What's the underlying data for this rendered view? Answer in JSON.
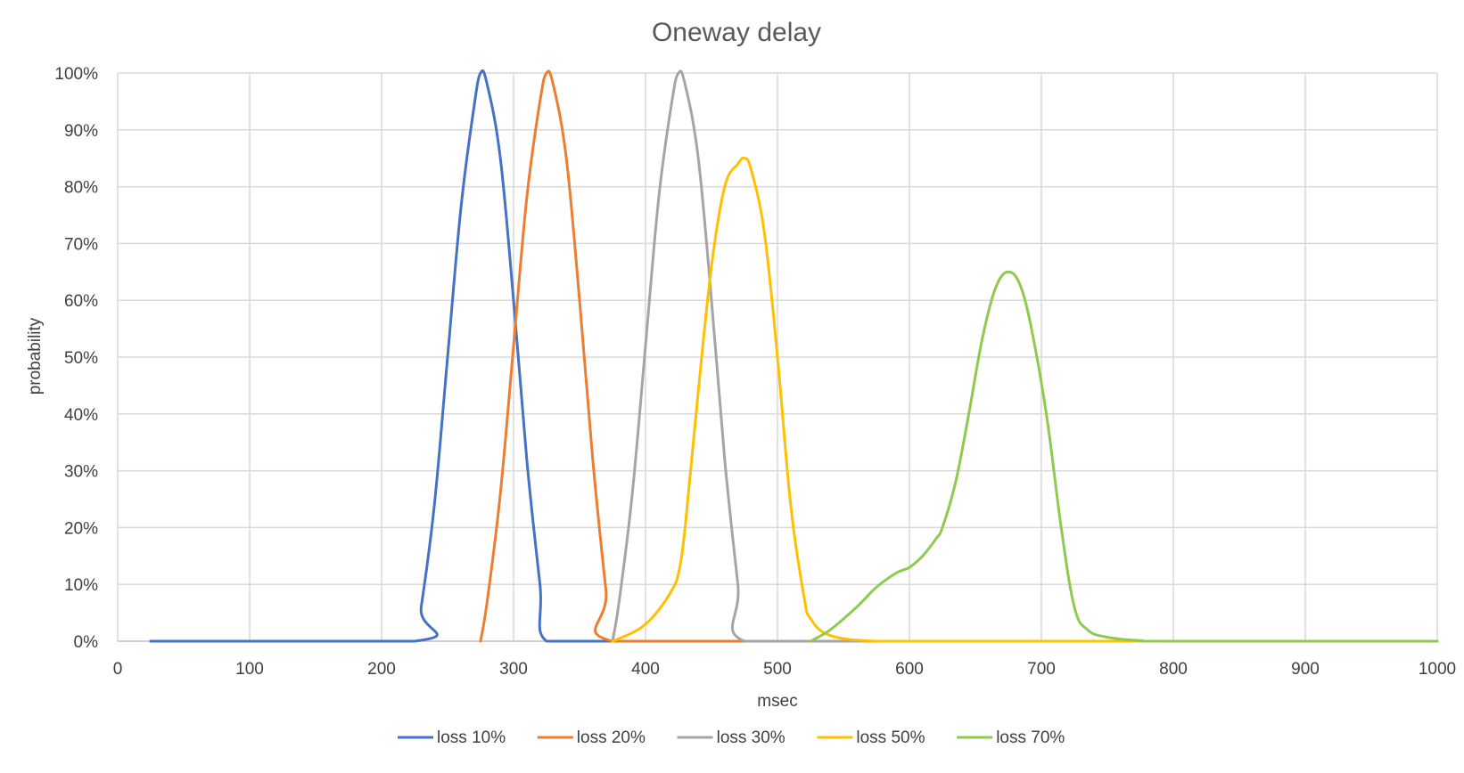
{
  "chart_data": {
    "type": "line",
    "title": "Oneway delay",
    "xlabel": "msec",
    "ylabel": "probability",
    "xlim": [
      0,
      1000
    ],
    "ylim": [
      0,
      100
    ],
    "x_ticks": [
      0,
      100,
      200,
      300,
      400,
      500,
      600,
      700,
      800,
      900,
      1000
    ],
    "y_ticks": [
      0,
      10,
      20,
      30,
      40,
      50,
      60,
      70,
      80,
      90,
      100
    ],
    "y_tick_labels": [
      "0%",
      "10%",
      "20%",
      "30%",
      "40%",
      "50%",
      "60%",
      "70%",
      "80%",
      "90%",
      "100%"
    ],
    "grid": true,
    "legend_position": "bottom",
    "series": [
      {
        "name": "loss 10%",
        "color": "#4472c4",
        "points": [
          [
            25,
            0
          ],
          [
            225,
            0
          ],
          [
            230,
            6
          ],
          [
            240,
            24
          ],
          [
            250,
            50
          ],
          [
            260,
            76
          ],
          [
            270,
            94
          ],
          [
            275,
            100
          ],
          [
            280,
            98
          ],
          [
            290,
            85
          ],
          [
            300,
            60
          ],
          [
            310,
            32
          ],
          [
            320,
            10
          ],
          [
            325,
            0
          ],
          [
            375,
            0
          ],
          [
            500,
            0
          ],
          [
            600,
            0
          ],
          [
            700,
            0
          ],
          [
            1000,
            0
          ]
        ]
      },
      {
        "name": "loss 20%",
        "color": "#ed7d31",
        "points": [
          [
            275,
            0
          ],
          [
            280,
            7
          ],
          [
            290,
            26
          ],
          [
            300,
            52
          ],
          [
            310,
            78
          ],
          [
            320,
            95
          ],
          [
            325,
            100
          ],
          [
            330,
            98
          ],
          [
            340,
            85
          ],
          [
            350,
            60
          ],
          [
            360,
            32
          ],
          [
            370,
            9
          ],
          [
            375,
            0
          ],
          [
            525,
            0
          ]
        ]
      },
      {
        "name": "loss 30%",
        "color": "#a5a5a5",
        "points": [
          [
            375,
            0
          ],
          [
            380,
            7
          ],
          [
            390,
            26
          ],
          [
            400,
            52
          ],
          [
            410,
            78
          ],
          [
            420,
            95
          ],
          [
            425,
            100
          ],
          [
            430,
            98
          ],
          [
            440,
            85
          ],
          [
            450,
            60
          ],
          [
            460,
            32
          ],
          [
            470,
            10
          ],
          [
            475,
            0
          ],
          [
            575,
            0
          ],
          [
            1000,
            0
          ]
        ]
      },
      {
        "name": "loss 50%",
        "color": "#ffc000",
        "points": [
          [
            375,
            0
          ],
          [
            390,
            1.5
          ],
          [
            400,
            3
          ],
          [
            410,
            5.5
          ],
          [
            420,
            9
          ],
          [
            425,
            12
          ],
          [
            430,
            20
          ],
          [
            440,
            44
          ],
          [
            450,
            66
          ],
          [
            460,
            80
          ],
          [
            470,
            84
          ],
          [
            475,
            85
          ],
          [
            480,
            83
          ],
          [
            490,
            72
          ],
          [
            500,
            50
          ],
          [
            510,
            24
          ],
          [
            520,
            8
          ],
          [
            525,
            4
          ],
          [
            540,
            1
          ],
          [
            575,
            0
          ],
          [
            625,
            0
          ],
          [
            1000,
            0
          ]
        ]
      },
      {
        "name": "loss 70%",
        "color": "#8fca4f",
        "points": [
          [
            525,
            0
          ],
          [
            540,
            2
          ],
          [
            560,
            6
          ],
          [
            575,
            9.5
          ],
          [
            590,
            12
          ],
          [
            600,
            13
          ],
          [
            610,
            15
          ],
          [
            620,
            18
          ],
          [
            625,
            20
          ],
          [
            635,
            28
          ],
          [
            645,
            40
          ],
          [
            655,
            53
          ],
          [
            665,
            62
          ],
          [
            675,
            65
          ],
          [
            685,
            62
          ],
          [
            695,
            52
          ],
          [
            705,
            38
          ],
          [
            715,
            20
          ],
          [
            725,
            6
          ],
          [
            735,
            2
          ],
          [
            750,
            0.7
          ],
          [
            775,
            0.1
          ],
          [
            800,
            0
          ],
          [
            1000,
            0
          ]
        ]
      }
    ]
  }
}
